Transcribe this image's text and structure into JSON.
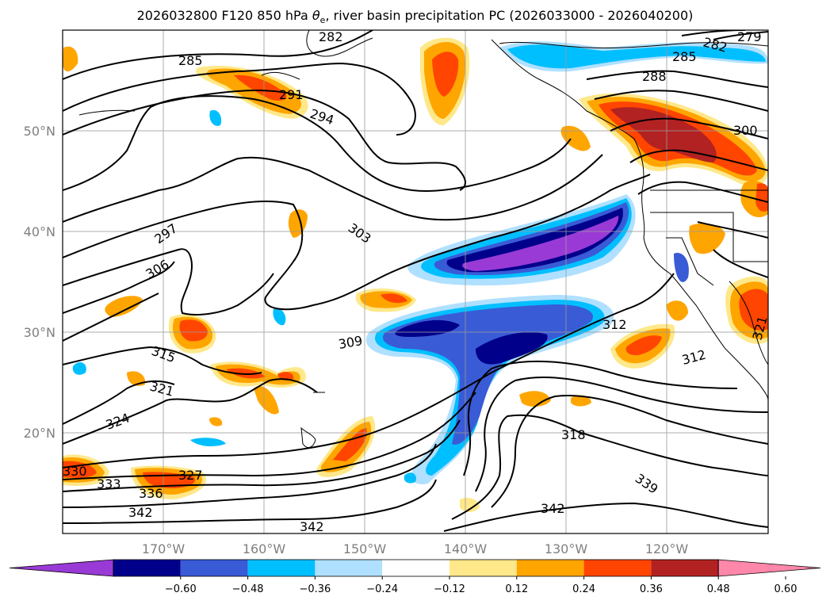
{
  "title": {
    "main": "2026032800 F120 850 hPa ",
    "symbol": "θ",
    "symbol_sub": "e",
    "rest": ", river basin precipitation PC (2026033000 - 2026040200)"
  },
  "lat_labels": [
    "50°N",
    "40°N",
    "30°N",
    "20°N"
  ],
  "lon_labels": [
    "170°W",
    "160°W",
    "150°W",
    "140°W",
    "130°W",
    "120°W"
  ],
  "contour_labels": [
    "285",
    "282",
    "282",
    "279",
    "285",
    "288",
    "291",
    "294",
    "300",
    "297",
    "303",
    "306",
    "309",
    "312",
    "312",
    "315",
    "321",
    "324",
    "318",
    "330",
    "333",
    "336",
    "327",
    "339",
    "342",
    "342",
    "342",
    "321"
  ],
  "colorbar": {
    "ticks": [
      "−0.60",
      "−0.48",
      "−0.36",
      "−0.24",
      "−0.12",
      "0.12",
      "0.24",
      "0.36",
      "0.48",
      "0.60"
    ],
    "colors": [
      "#9a3ad6",
      "#00008b",
      "#3a5bd6",
      "#00bfff",
      "#b0e0ff",
      "#ffffff",
      "#ffe88a",
      "#ffa500",
      "#ff4500",
      "#b22222",
      "#ff88aa"
    ]
  }
}
